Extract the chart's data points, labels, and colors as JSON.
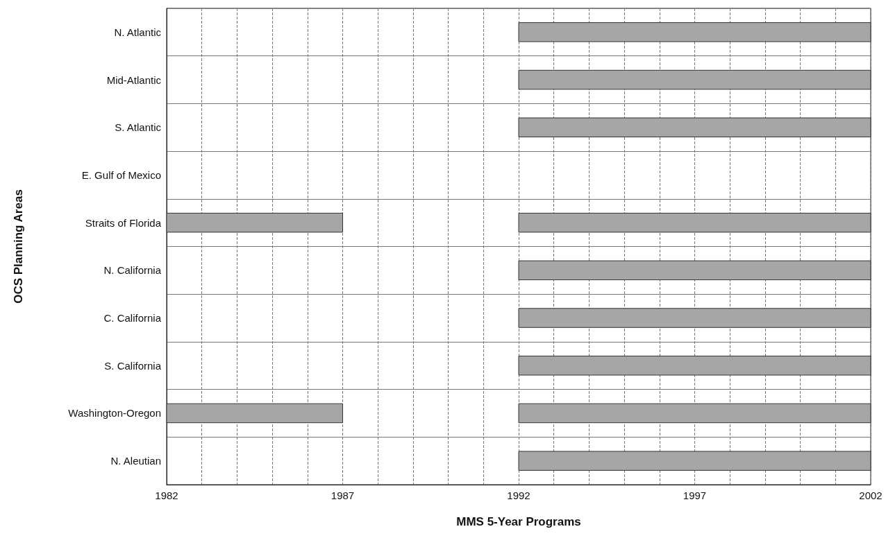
{
  "chart_data": {
    "type": "bar",
    "orientation": "horizontal",
    "xlabel": "MMS 5-Year Programs",
    "ylabel": "OCS Planning Areas",
    "categories": [
      "N. Atlantic",
      "Mid-Atlantic",
      "S. Atlantic",
      "E. Gulf of Mexico",
      "Straits of Florida",
      "N. California",
      "C. California",
      "S. California",
      "Washington-Oregon",
      "N. Aleutian"
    ],
    "series": [
      {
        "color": "#a6a6a6",
        "base": [
          null,
          null,
          null,
          null,
          1982,
          null,
          null,
          null,
          1982,
          null
        ],
        "values": [
          null,
          null,
          null,
          null,
          5,
          null,
          null,
          null,
          5,
          null
        ]
      },
      {
        "color": "#a6a6a6",
        "base": [
          1992,
          1992,
          1992,
          null,
          1992,
          1992,
          1992,
          1992,
          1992,
          1992
        ],
        "values": [
          10,
          10,
          10,
          null,
          10,
          10,
          10,
          10,
          10,
          10
        ]
      }
    ],
    "xlim": [
      1982,
      2002
    ],
    "xticks": [
      1982,
      {
        "value": 1983,
        "label": null
      },
      {
        "value": 1984,
        "label": null
      },
      {
        "value": 1985,
        "label": null
      },
      {
        "value": 1986,
        "label": null
      },
      1987,
      {
        "value": 1988,
        "label": null
      },
      {
        "value": 1989,
        "label": null
      },
      {
        "value": 1990,
        "label": null
      },
      {
        "value": 1991,
        "label": null
      },
      1992,
      {
        "value": 1993,
        "label": null
      },
      {
        "value": 1994,
        "label": null
      },
      {
        "value": 1995,
        "label": null
      },
      {
        "value": 1996,
        "label": null
      },
      1997,
      {
        "value": 1998,
        "label": null
      },
      {
        "value": 1999,
        "label": null
      },
      {
        "value": 2000,
        "label": null
      },
      {
        "value": 2001,
        "label": null
      },
      2002
    ],
    "grid": true
  }
}
